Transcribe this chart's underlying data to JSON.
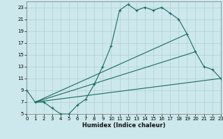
{
  "xlabel": "Humidex (Indice chaleur)",
  "bg_color": "#cce8ec",
  "line_color": "#1a6b60",
  "grid_color": "#b0d0d4",
  "xlim": [
    0,
    23
  ],
  "ylim": [
    5,
    24
  ],
  "xticks": [
    0,
    1,
    2,
    3,
    4,
    5,
    6,
    7,
    8,
    9,
    10,
    11,
    12,
    13,
    14,
    15,
    16,
    17,
    18,
    19,
    20,
    21,
    22,
    23
  ],
  "yticks": [
    5,
    7,
    9,
    11,
    13,
    15,
    17,
    19,
    21,
    23
  ],
  "curve1_x": [
    0,
    1,
    2,
    3,
    4,
    5,
    6,
    7,
    8,
    9,
    10,
    11,
    12,
    13,
    14,
    15,
    16,
    17,
    18,
    19,
    20,
    21,
    22,
    23
  ],
  "curve1_y": [
    9,
    7,
    7,
    6,
    5,
    5,
    6.5,
    7.5,
    10,
    13,
    16.5,
    22.5,
    23.5,
    22.5,
    23,
    22.5,
    23,
    22,
    21,
    18.5,
    15.5,
    13,
    12.5,
    11
  ],
  "line1_x": [
    1,
    23
  ],
  "line1_y": [
    7,
    11
  ],
  "line2_x": [
    1,
    20
  ],
  "line2_y": [
    7,
    15.5
  ],
  "line3_x": [
    1,
    19
  ],
  "line3_y": [
    7,
    18.5
  ]
}
